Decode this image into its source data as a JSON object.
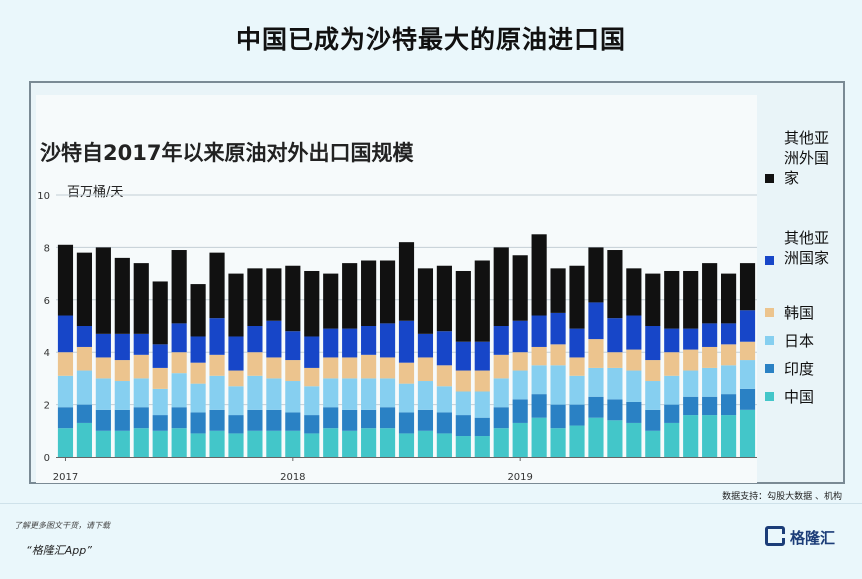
{
  "page_title": "中国已成为沙特最大的原油进口国",
  "chart_data": {
    "type": "bar",
    "stacked": true,
    "title": "沙特自2017年以来原油对外出口国规模",
    "unit": "百万桶/天",
    "ylim": [
      0,
      10
    ],
    "yticks": [
      "0",
      "2",
      "4",
      "6",
      "8",
      "10"
    ],
    "xtick_labels": [
      {
        "index": 0,
        "label": "2017"
      },
      {
        "index": 12,
        "label": "2018"
      },
      {
        "index": 24,
        "label": "2019"
      }
    ],
    "series": [
      {
        "name": "中国",
        "color": "#43c6c9",
        "values": [
          1.1,
          1.3,
          1.0,
          1.0,
          1.1,
          1.0,
          1.1,
          0.9,
          1.0,
          0.9,
          1.0,
          1.0,
          1.0,
          0.9,
          1.1,
          1.0,
          1.1,
          1.1,
          0.9,
          1.0,
          0.9,
          0.8,
          0.8,
          1.1,
          1.3,
          1.5,
          1.1,
          1.2,
          1.5,
          1.4,
          1.3,
          1.0,
          1.3,
          1.6,
          1.6,
          1.6,
          1.8
        ]
      },
      {
        "name": "印度",
        "color": "#2a81c4",
        "values": [
          0.8,
          0.7,
          0.8,
          0.8,
          0.8,
          0.6,
          0.8,
          0.8,
          0.8,
          0.7,
          0.8,
          0.8,
          0.7,
          0.7,
          0.8,
          0.8,
          0.7,
          0.8,
          0.8,
          0.8,
          0.8,
          0.8,
          0.7,
          0.8,
          0.9,
          0.9,
          0.9,
          0.8,
          0.8,
          0.8,
          0.8,
          0.8,
          0.7,
          0.7,
          0.7,
          0.8,
          0.8
        ]
      },
      {
        "name": "日本",
        "color": "#86cff0",
        "values": [
          1.2,
          1.3,
          1.2,
          1.1,
          1.1,
          1.0,
          1.3,
          1.1,
          1.3,
          1.1,
          1.3,
          1.2,
          1.2,
          1.1,
          1.1,
          1.2,
          1.2,
          1.1,
          1.1,
          1.1,
          1.0,
          0.9,
          1.0,
          1.1,
          1.1,
          1.1,
          1.5,
          1.1,
          1.1,
          1.2,
          1.2,
          1.1,
          1.1,
          1.0,
          1.1,
          1.1,
          1.1
        ]
      },
      {
        "name": "韩国",
        "color": "#ecc48e",
        "values": [
          0.9,
          0.9,
          0.8,
          0.8,
          0.9,
          0.8,
          0.8,
          0.8,
          0.8,
          0.6,
          0.9,
          0.8,
          0.8,
          0.7,
          0.8,
          0.8,
          0.9,
          0.8,
          0.8,
          0.9,
          0.8,
          0.8,
          0.8,
          0.9,
          0.7,
          0.7,
          0.8,
          0.7,
          1.1,
          0.6,
          0.8,
          0.8,
          0.9,
          0.8,
          0.8,
          0.8,
          0.7
        ]
      },
      {
        "name": "其他亚洲国家",
        "color": "#1746c8",
        "values": [
          1.4,
          0.8,
          0.9,
          1.0,
          0.8,
          0.9,
          1.1,
          1.0,
          1.4,
          1.3,
          1.0,
          1.4,
          1.1,
          1.2,
          1.1,
          1.1,
          1.1,
          1.3,
          1.6,
          0.9,
          1.3,
          1.1,
          1.1,
          1.1,
          1.2,
          1.2,
          1.2,
          1.1,
          1.4,
          1.3,
          1.3,
          1.3,
          0.9,
          0.8,
          0.9,
          0.8,
          1.2
        ]
      },
      {
        "name": "其他亚洲外国家",
        "color": "#111111",
        "values": [
          2.7,
          2.8,
          3.3,
          2.9,
          2.7,
          2.4,
          2.8,
          2.0,
          2.5,
          2.4,
          2.2,
          2.0,
          2.5,
          2.5,
          2.1,
          2.5,
          2.5,
          2.4,
          3.0,
          2.5,
          2.5,
          2.7,
          3.1,
          3.0,
          2.5,
          3.1,
          1.7,
          2.4,
          2.1,
          2.6,
          1.8,
          2.0,
          2.2,
          2.2,
          2.3,
          1.9,
          1.8
        ]
      }
    ],
    "legend": [
      {
        "label": "其他亚洲外国家",
        "color": "#111111"
      },
      {
        "label": "其他亚洲国家",
        "color": "#1746c8"
      },
      {
        "label": "韩国",
        "color": "#ecc48e"
      },
      {
        "label": "日本",
        "color": "#86cff0"
      },
      {
        "label": "印度",
        "color": "#2a81c4"
      },
      {
        "label": "中国",
        "color": "#43c6c9"
      }
    ],
    "legend_position": "right",
    "grid": true
  },
  "source": "数据支持：勾股大数据 、机构",
  "footer": {
    "note": "了解更多图文干货，请下载",
    "app": "“格隆汇App”",
    "brand": "格隆汇"
  }
}
